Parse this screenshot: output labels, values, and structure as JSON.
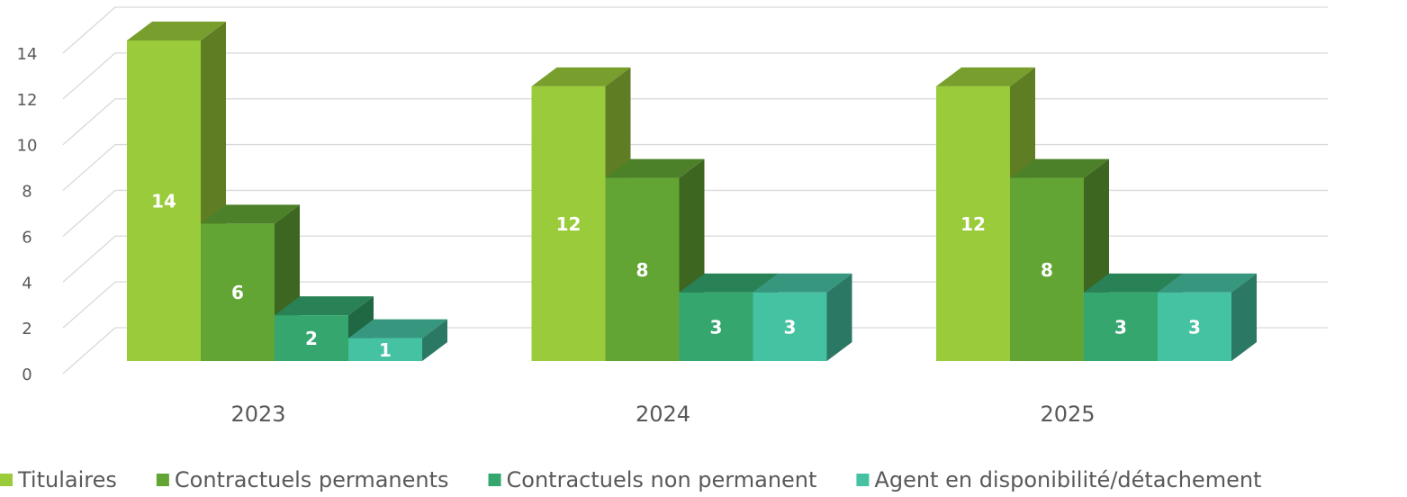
{
  "chart_data": {
    "type": "bar3d",
    "categories": [
      "2023",
      "2024",
      "2025"
    ],
    "series": [
      {
        "name": "Titulaires",
        "color": "#9acb3a",
        "values": [
          14,
          12,
          12
        ]
      },
      {
        "name": "Contractuels permanents",
        "color": "#63a534",
        "values": [
          6,
          8,
          8
        ]
      },
      {
        "name": "Contractuels non permanent",
        "color": "#34a66e",
        "values": [
          2,
          3,
          3
        ]
      },
      {
        "name": "Agent en disponibilité/détachement",
        "color": "#45c2a2",
        "values": [
          1,
          3,
          3
        ]
      }
    ],
    "ylim": [
      0,
      14
    ],
    "yticks": [
      0,
      2,
      4,
      6,
      8,
      10,
      12,
      14
    ],
    "grid": true,
    "legend": "bottom"
  }
}
